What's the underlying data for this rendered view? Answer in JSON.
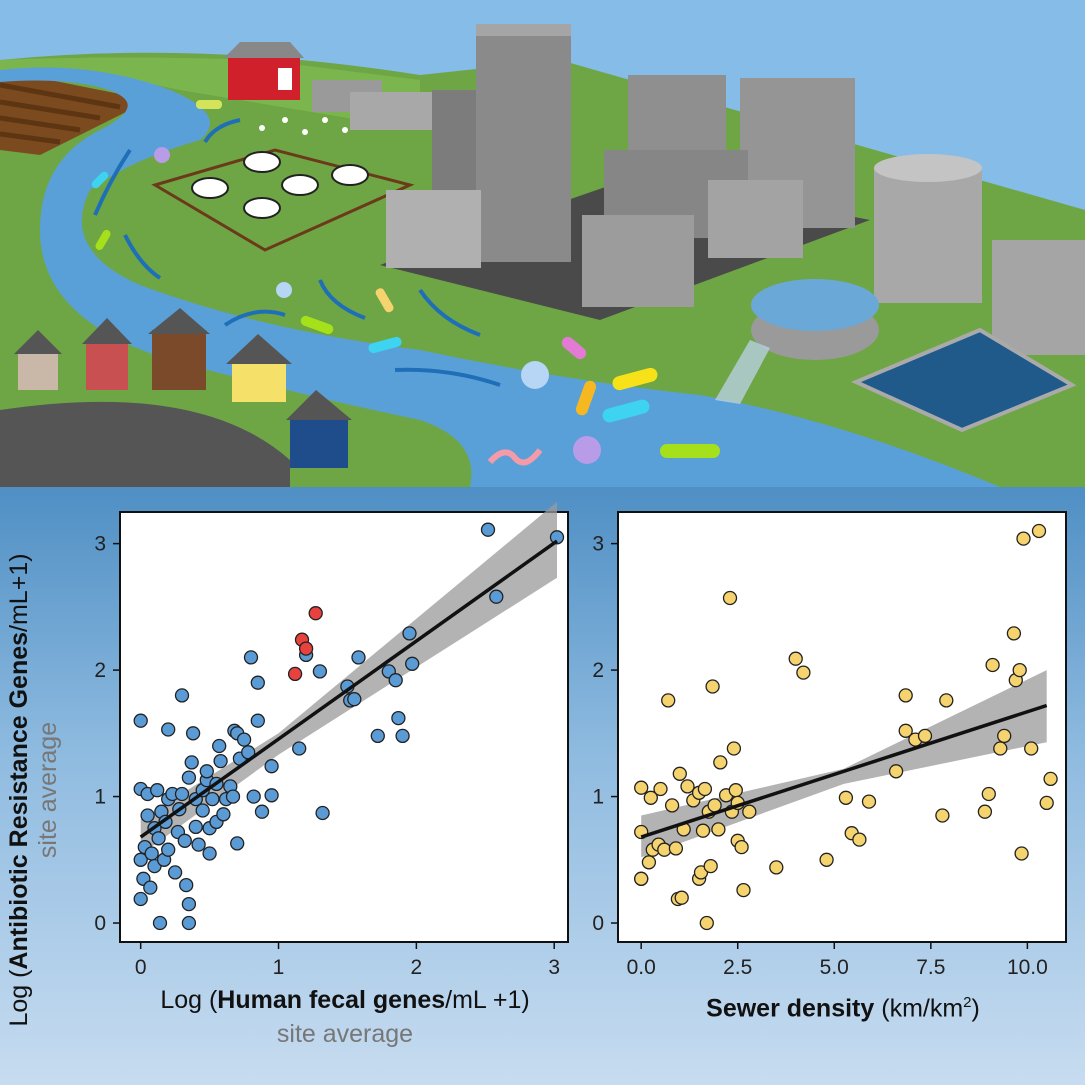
{
  "colors": {
    "sky": "#7fb6e6",
    "grass": "#6ea645",
    "river": "#5aa0d8",
    "building": "#8a8a8a",
    "panel_bg": "#5f9fd1",
    "point_left": "#5b9bd5",
    "point_left_highlight": "#e8423f",
    "point_right": "#f5d36e",
    "fit_line": "#111111",
    "ci_band": "#999999"
  },
  "icons": [
    "barn-icon",
    "cow-icon",
    "chicken-icon",
    "house-icon",
    "skyscraper-icon",
    "storage-tank-icon",
    "treatment-tank-icon",
    "outfall-pipe-icon",
    "bacteria-icon",
    "river-arrow-icon",
    "crop-field-icon"
  ],
  "shared_ylabel": {
    "prefix": "Log (",
    "bold": "Antibiotic Resistance Genes",
    "suffix": "/mL+1)",
    "sub": "site average"
  },
  "chart_data": [
    {
      "type": "scatter",
      "xlabel_prefix": "Log (",
      "xlabel_bold": "Human fecal genes",
      "xlabel_suffix": "/mL +1)",
      "xlabel_sub": "site average",
      "xlim": [
        -0.15,
        3.1
      ],
      "ylim": [
        -0.15,
        3.25
      ],
      "xticks": [
        "0",
        "1",
        "2",
        "3"
      ],
      "xtick_values": [
        0,
        1,
        2,
        3
      ],
      "yticks": [
        "0",
        "1",
        "2",
        "3"
      ],
      "ytick_values": [
        0,
        1,
        2,
        3
      ],
      "grid": false,
      "fit": {
        "x": [
          0,
          3.02
        ],
        "y": [
          0.68,
          3.02
        ],
        "ci_lower": [
          0.54,
          2.73
        ],
        "ci_upper": [
          0.82,
          3.33
        ],
        "ci_mid_lower": 1.33,
        "ci_mid_upper": 1.5,
        "ci_mid_x": 1.0
      },
      "series": [
        {
          "color": "#5b9bd5",
          "points": [
            [
              0.0,
              1.6
            ],
            [
              0.0,
              1.06
            ],
            [
              0.0,
              0.5
            ],
            [
              0.0,
              0.19
            ],
            [
              0.02,
              0.35
            ],
            [
              0.03,
              0.6
            ],
            [
              0.05,
              0.85
            ],
            [
              0.05,
              1.02
            ],
            [
              0.07,
              0.28
            ],
            [
              0.08,
              0.55
            ],
            [
              0.1,
              0.75
            ],
            [
              0.1,
              0.45
            ],
            [
              0.12,
              1.05
            ],
            [
              0.13,
              0.67
            ],
            [
              0.14,
              0.0
            ],
            [
              0.15,
              0.88
            ],
            [
              0.17,
              0.5
            ],
            [
              0.18,
              0.8
            ],
            [
              0.2,
              0.98
            ],
            [
              0.2,
              1.53
            ],
            [
              0.2,
              0.58
            ],
            [
              0.23,
              1.02
            ],
            [
              0.25,
              0.4
            ],
            [
              0.27,
              0.72
            ],
            [
              0.28,
              0.9
            ],
            [
              0.3,
              1.8
            ],
            [
              0.3,
              1.02
            ],
            [
              0.32,
              0.65
            ],
            [
              0.33,
              0.3
            ],
            [
              0.35,
              0.15
            ],
            [
              0.35,
              0.0
            ],
            [
              0.35,
              1.15
            ],
            [
              0.37,
              1.27
            ],
            [
              0.38,
              1.5
            ],
            [
              0.4,
              0.98
            ],
            [
              0.4,
              0.76
            ],
            [
              0.42,
              0.62
            ],
            [
              0.45,
              0.89
            ],
            [
              0.45,
              1.05
            ],
            [
              0.48,
              1.13
            ],
            [
              0.48,
              1.2
            ],
            [
              0.5,
              0.75
            ],
            [
              0.5,
              0.55
            ],
            [
              0.52,
              0.98
            ],
            [
              0.55,
              0.8
            ],
            [
              0.55,
              1.1
            ],
            [
              0.57,
              1.4
            ],
            [
              0.58,
              1.28
            ],
            [
              0.6,
              0.86
            ],
            [
              0.62,
              0.98
            ],
            [
              0.65,
              1.08
            ],
            [
              0.67,
              1.0
            ],
            [
              0.68,
              1.52
            ],
            [
              0.7,
              1.5
            ],
            [
              0.7,
              0.63
            ],
            [
              0.72,
              1.3
            ],
            [
              0.75,
              1.45
            ],
            [
              0.78,
              1.35
            ],
            [
              0.8,
              2.1
            ],
            [
              0.82,
              1.0
            ],
            [
              0.85,
              1.6
            ],
            [
              0.85,
              1.9
            ],
            [
              0.88,
              0.88
            ],
            [
              0.95,
              1.24
            ],
            [
              0.95,
              1.01
            ],
            [
              1.15,
              1.38
            ],
            [
              1.2,
              2.12
            ],
            [
              1.3,
              1.99
            ],
            [
              1.32,
              0.87
            ],
            [
              1.5,
              1.87
            ],
            [
              1.52,
              1.76
            ],
            [
              1.55,
              1.77
            ],
            [
              1.58,
              2.1
            ],
            [
              1.72,
              1.48
            ],
            [
              1.8,
              1.99
            ],
            [
              1.85,
              1.92
            ],
            [
              1.87,
              1.62
            ],
            [
              1.9,
              1.48
            ],
            [
              1.95,
              2.29
            ],
            [
              1.97,
              2.05
            ],
            [
              2.52,
              3.11
            ],
            [
              2.58,
              2.58
            ],
            [
              3.02,
              3.05
            ]
          ]
        },
        {
          "color": "#e8423f",
          "points": [
            [
              1.12,
              1.97
            ],
            [
              1.17,
              2.24
            ],
            [
              1.2,
              2.17
            ],
            [
              1.27,
              2.45
            ]
          ]
        }
      ]
    },
    {
      "type": "scatter",
      "xlabel_bold": "Sewer density",
      "xlabel_units": " (km/km",
      "xlabel_sup": "2",
      "xlabel_close": ")",
      "xlim": [
        -0.6,
        11.0
      ],
      "ylim": [
        -0.15,
        3.25
      ],
      "xticks": [
        "0.0",
        "2.5",
        "5.0",
        "7.5",
        "10.0"
      ],
      "xtick_values": [
        0,
        2.5,
        5.0,
        7.5,
        10.0
      ],
      "yticks": [
        "0",
        "1",
        "2",
        "3"
      ],
      "ytick_values": [
        0,
        1,
        2,
        3
      ],
      "grid": false,
      "fit": {
        "x": [
          0,
          10.5
        ],
        "y": [
          0.68,
          1.72
        ],
        "ci_lower": [
          0.52,
          1.43
        ],
        "ci_upper": [
          0.85,
          2.0
        ],
        "ci_mid_lower": 1.1,
        "ci_mid_upper": 1.22,
        "ci_mid_x": 5.25
      },
      "series": [
        {
          "color": "#f5d36e",
          "points": [
            [
              0.0,
              0.35
            ],
            [
              0.0,
              0.35
            ],
            [
              0.0,
              0.72
            ],
            [
              0.0,
              1.07
            ],
            [
              0.2,
              0.48
            ],
            [
              0.25,
              0.99
            ],
            [
              0.3,
              0.58
            ],
            [
              0.45,
              0.62
            ],
            [
              0.5,
              1.06
            ],
            [
              0.6,
              0.58
            ],
            [
              0.7,
              1.76
            ],
            [
              0.8,
              0.93
            ],
            [
              0.9,
              0.59
            ],
            [
              0.95,
              0.19
            ],
            [
              1.0,
              1.18
            ],
            [
              1.05,
              0.2
            ],
            [
              1.1,
              0.74
            ],
            [
              1.2,
              1.08
            ],
            [
              1.35,
              0.97
            ],
            [
              1.5,
              1.03
            ],
            [
              1.5,
              0.35
            ],
            [
              1.55,
              0.4
            ],
            [
              1.6,
              0.73
            ],
            [
              1.65,
              1.06
            ],
            [
              1.7,
              0.0
            ],
            [
              1.75,
              0.88
            ],
            [
              1.8,
              0.45
            ],
            [
              1.85,
              1.87
            ],
            [
              1.9,
              0.93
            ],
            [
              2.0,
              0.74
            ],
            [
              2.05,
              1.27
            ],
            [
              2.2,
              1.01
            ],
            [
              2.3,
              2.57
            ],
            [
              2.35,
              0.88
            ],
            [
              2.4,
              1.38
            ],
            [
              2.45,
              1.05
            ],
            [
              2.5,
              0.95
            ],
            [
              2.5,
              0.65
            ],
            [
              2.6,
              0.6
            ],
            [
              2.65,
              0.26
            ],
            [
              2.8,
              0.88
            ],
            [
              3.5,
              0.44
            ],
            [
              4.0,
              2.09
            ],
            [
              4.2,
              1.98
            ],
            [
              4.8,
              0.5
            ],
            [
              5.3,
              0.99
            ],
            [
              5.45,
              0.71
            ],
            [
              5.65,
              0.66
            ],
            [
              5.9,
              0.96
            ],
            [
              6.6,
              1.2
            ],
            [
              6.85,
              1.8
            ],
            [
              6.85,
              1.52
            ],
            [
              7.1,
              1.45
            ],
            [
              7.35,
              1.48
            ],
            [
              7.8,
              0.85
            ],
            [
              7.9,
              1.76
            ],
            [
              8.9,
              0.88
            ],
            [
              9.0,
              1.02
            ],
            [
              9.1,
              2.04
            ],
            [
              9.3,
              1.38
            ],
            [
              9.4,
              1.48
            ],
            [
              9.65,
              2.29
            ],
            [
              9.7,
              1.92
            ],
            [
              9.8,
              2.0
            ],
            [
              9.85,
              0.55
            ],
            [
              9.9,
              3.04
            ],
            [
              10.1,
              1.38
            ],
            [
              10.3,
              3.1
            ],
            [
              10.5,
              0.95
            ],
            [
              10.6,
              1.14
            ]
          ]
        }
      ]
    }
  ]
}
